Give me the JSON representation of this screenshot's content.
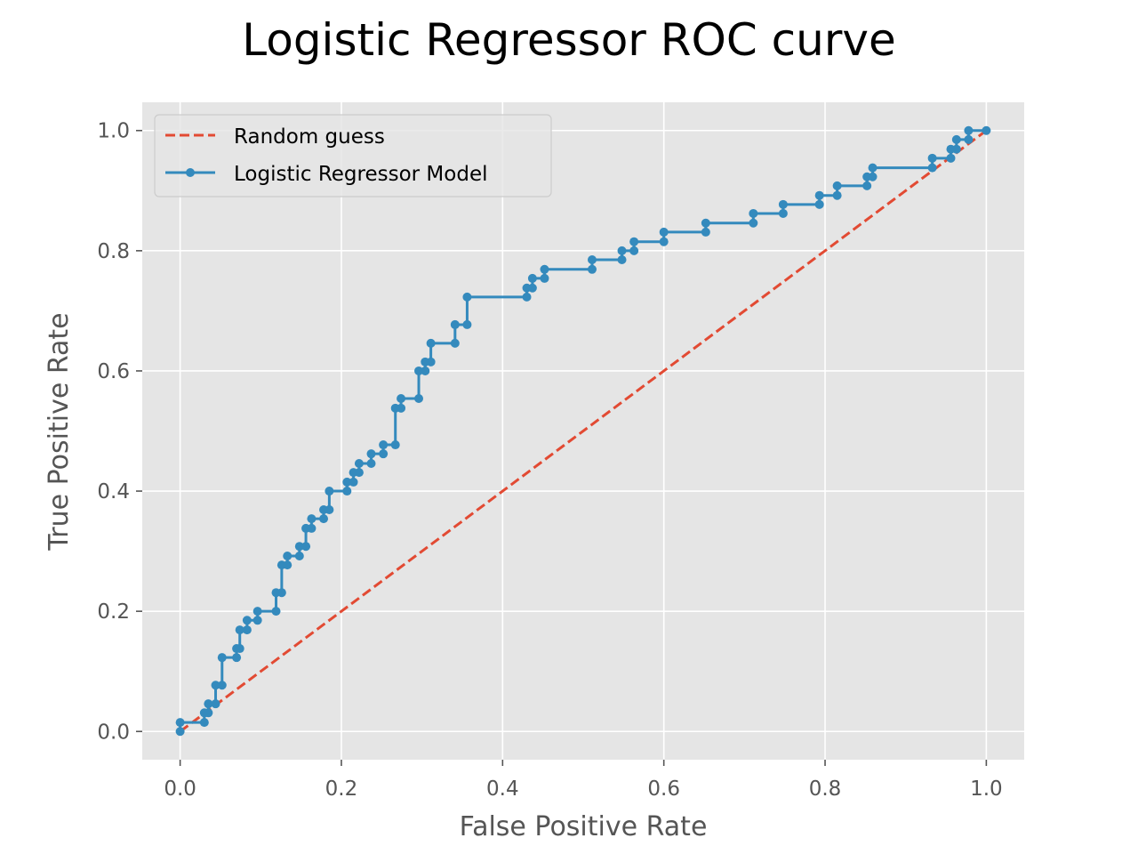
{
  "chart_data": {
    "type": "line",
    "title": "Logistic Regressor ROC curve",
    "xlabel": "False Positive Rate",
    "ylabel": "True Positive Rate",
    "xlim": [
      -0.047,
      1.047
    ],
    "ylim": [
      -0.047,
      1.047
    ],
    "xticks": [
      0.0,
      0.2,
      0.4,
      0.6,
      0.8,
      1.0
    ],
    "yticks": [
      0.0,
      0.2,
      0.4,
      0.6,
      0.8,
      1.0
    ],
    "xtick_labels": [
      "0.0",
      "0.2",
      "0.4",
      "0.6",
      "0.8",
      "1.0"
    ],
    "ytick_labels": [
      "0.0",
      "0.2",
      "0.4",
      "0.6",
      "0.8",
      "1.0"
    ],
    "grid": true,
    "legend_position": "top-left",
    "series": [
      {
        "name": "Random guess",
        "style": "dashed",
        "color": "#E24A33",
        "x": [
          0,
          1
        ],
        "y": [
          0,
          1
        ]
      },
      {
        "name": "Logistic Regressor Model",
        "style": "step-markers",
        "color": "#348ABD",
        "x": [
          0.0,
          0.0,
          0.03,
          0.03,
          0.035,
          0.035,
          0.044,
          0.044,
          0.052,
          0.052,
          0.07,
          0.07,
          0.074,
          0.074,
          0.083,
          0.083,
          0.096,
          0.096,
          0.119,
          0.119,
          0.126,
          0.126,
          0.133,
          0.133,
          0.148,
          0.148,
          0.156,
          0.156,
          0.163,
          0.163,
          0.178,
          0.178,
          0.185,
          0.185,
          0.207,
          0.207,
          0.215,
          0.215,
          0.222,
          0.222,
          0.237,
          0.237,
          0.252,
          0.252,
          0.267,
          0.267,
          0.274,
          0.274,
          0.296,
          0.296,
          0.304,
          0.304,
          0.311,
          0.311,
          0.341,
          0.341,
          0.356,
          0.356,
          0.43,
          0.43,
          0.437,
          0.437,
          0.452,
          0.452,
          0.511,
          0.511,
          0.548,
          0.548,
          0.563,
          0.563,
          0.6,
          0.6,
          0.652,
          0.652,
          0.711,
          0.711,
          0.748,
          0.748,
          0.793,
          0.793,
          0.815,
          0.815,
          0.852,
          0.852,
          0.859,
          0.859,
          0.933,
          0.933,
          0.956,
          0.956,
          0.963,
          0.963,
          0.978,
          0.978,
          1.0
        ],
        "y": [
          0.0,
          0.015,
          0.015,
          0.031,
          0.031,
          0.046,
          0.046,
          0.077,
          0.077,
          0.123,
          0.123,
          0.138,
          0.138,
          0.169,
          0.169,
          0.185,
          0.185,
          0.2,
          0.2,
          0.231,
          0.231,
          0.277,
          0.277,
          0.292,
          0.292,
          0.308,
          0.308,
          0.338,
          0.338,
          0.354,
          0.354,
          0.369,
          0.369,
          0.4,
          0.4,
          0.415,
          0.415,
          0.431,
          0.431,
          0.446,
          0.446,
          0.462,
          0.462,
          0.477,
          0.477,
          0.538,
          0.538,
          0.554,
          0.554,
          0.6,
          0.6,
          0.615,
          0.615,
          0.646,
          0.646,
          0.677,
          0.677,
          0.723,
          0.723,
          0.738,
          0.738,
          0.754,
          0.754,
          0.769,
          0.769,
          0.785,
          0.785,
          0.8,
          0.8,
          0.815,
          0.815,
          0.831,
          0.831,
          0.846,
          0.846,
          0.862,
          0.862,
          0.877,
          0.877,
          0.892,
          0.892,
          0.908,
          0.908,
          0.923,
          0.923,
          0.938,
          0.938,
          0.954,
          0.954,
          0.969,
          0.969,
          0.985,
          0.985,
          1.0,
          1.0
        ]
      }
    ]
  }
}
